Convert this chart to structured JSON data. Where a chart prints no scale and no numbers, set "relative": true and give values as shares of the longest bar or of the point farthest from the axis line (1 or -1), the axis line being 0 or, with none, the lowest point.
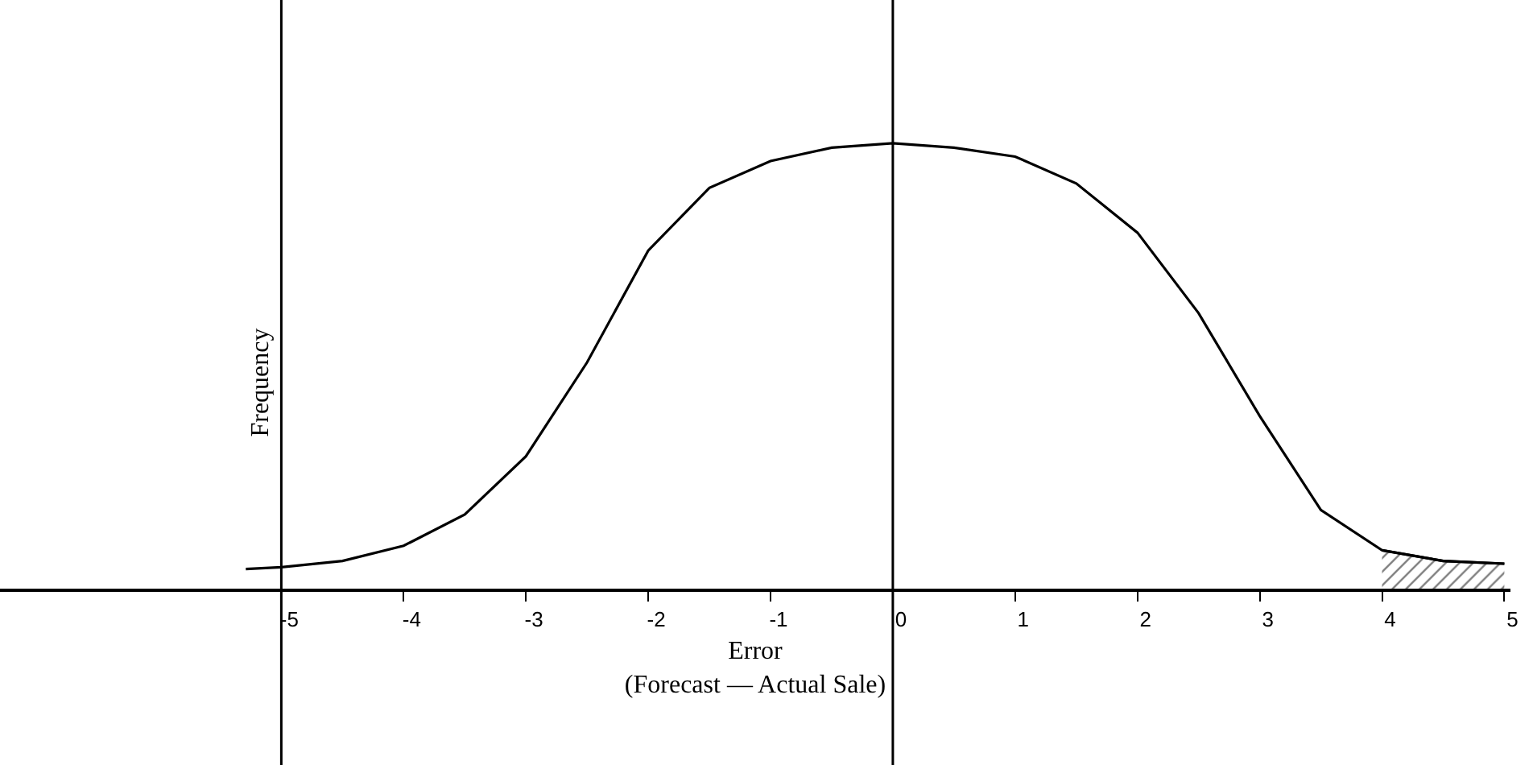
{
  "chart_data": {
    "type": "line",
    "relative": true,
    "xlabel": "Error\n(Forecast — Actual Sale)",
    "ylabel": "Frequency",
    "x": [
      -5.29,
      -5,
      -4.5,
      -4,
      -3.5,
      -3,
      -2.5,
      -2,
      -1.5,
      -1,
      -0.5,
      0,
      0.5,
      1,
      1.5,
      2,
      2.5,
      3,
      3.5,
      4,
      4.5,
      5
    ],
    "series": [
      {
        "color": "#000000",
        "values": [
          0.048,
          0.052,
          0.066,
          0.1,
          0.17,
          0.3,
          0.51,
          0.76,
          0.9,
          0.96,
          0.99,
          1.0,
          0.99,
          0.97,
          0.91,
          0.8,
          0.62,
          0.39,
          0.18,
          0.09,
          0.066,
          0.06
        ]
      },
      {
        "type": "area",
        "color": "#000000",
        "x": [
          4,
          4.5,
          5
        ],
        "values": [
          0.09,
          0.066,
          0.06
        ]
      }
    ],
    "xlim": [
      -7.3,
      5.05
    ],
    "xticks": [
      -5,
      -4,
      -3,
      -2,
      -1,
      0,
      1,
      2,
      3,
      4,
      5
    ],
    "ref_lines": [
      {
        "axis": "x",
        "value": -5,
        "color": "#000000"
      },
      {
        "axis": "x",
        "value": 0,
        "color": "#000000"
      }
    ],
    "marker": "none",
    "line_style": "solid"
  }
}
